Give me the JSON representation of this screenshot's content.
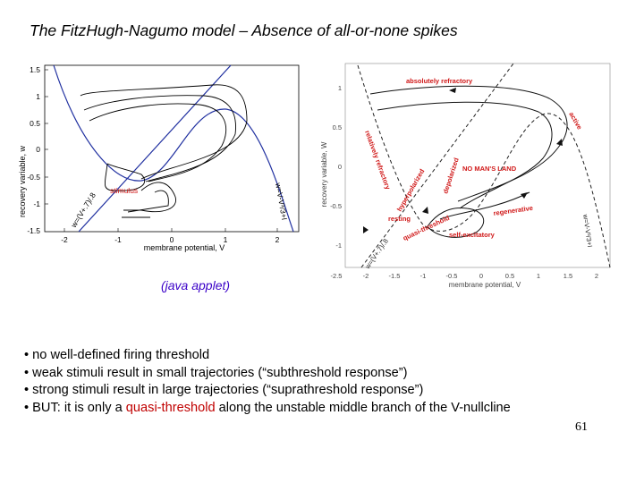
{
  "slide": {
    "title": "The FitzHugh-Nagumo model – Absence of all-or-none spikes",
    "caption": "(java applet)",
    "page_number": "61"
  },
  "bullets": [
    {
      "text": "no well-defined firing threshold"
    },
    {
      "text": "weak stimuli result in small trajectories (“subthreshold response”)"
    },
    {
      "text": "strong stimuli result in large trajectories (“suprathreshold response”)"
    },
    {
      "pre": "BUT: it is only a ",
      "highlight": "quasi-threshold",
      "post": " along the unstable middle branch of the V-nullcline"
    }
  ],
  "colors": {
    "highlight": "#c00000",
    "caption": "#3a00c8",
    "nullcline": "#2030a0",
    "annotation": "#d01818"
  },
  "left_plot": {
    "ylabel": "recovery variable, w",
    "xlabel": "membrane potential, V",
    "xticks": [
      "-2",
      "-1",
      "0",
      "1",
      "2"
    ],
    "yticks": [
      "1.5",
      "1",
      "0.5",
      "0",
      "-0.5",
      "-1",
      "-1.5"
    ],
    "labels": {
      "stimulus": "stimulus",
      "w_nullcline": "w=(V+.7)/.8",
      "v_nullcline": "w=V-V³/3+I"
    }
  },
  "right_plot": {
    "ylabel": "recovery variable, W",
    "xlabel": "membrane potential, V",
    "xticks": [
      "-2.5",
      "-2",
      "-1.5",
      "-1",
      "-0.5",
      "0",
      "0.5",
      "1",
      "1.5",
      "2"
    ],
    "yticks": [
      "1",
      "0.5",
      "0",
      "-0.5",
      "-1"
    ],
    "regions": {
      "absolutely_refractory": "absolutely refractory",
      "active": "active",
      "relatively_refractory": "relatively refractory",
      "depolarized": "depolarized",
      "hyperpolarized": "hyperpolarized",
      "no_mans_land": "NO MAN'S LAND",
      "regenerative": "regenerative",
      "resting": "resting",
      "quasi_threshold": "quasi-threshold",
      "self_excitatory": "self-excitatory",
      "w_nullcline": "w=(V+.7)/.8",
      "v_nullcline": "w=V-V³/3+I"
    }
  }
}
